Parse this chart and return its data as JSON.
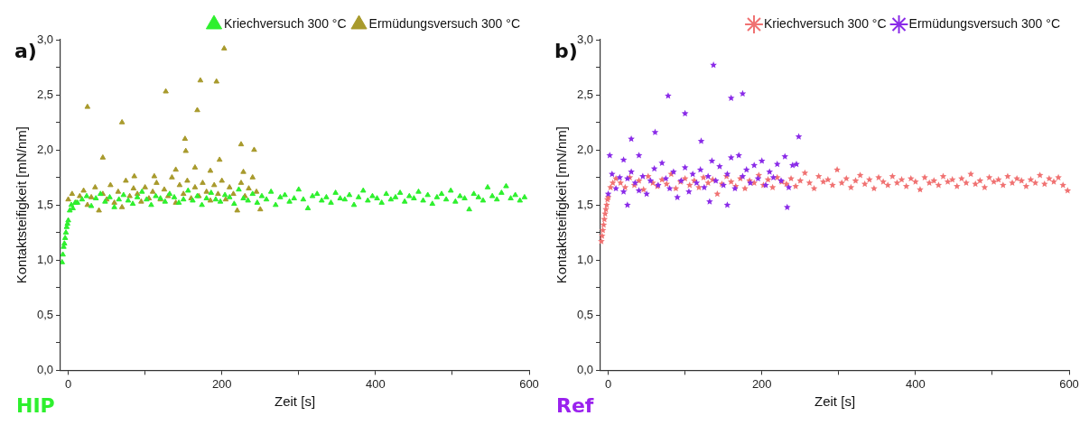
{
  "chart_data": [
    {
      "type": "scatter",
      "xlabel": "Zeit [s]",
      "ylabel": "Kontaktsteifigkeit [mN/nm]",
      "annotations": [
        "a)",
        "HIP"
      ],
      "marker": "triangle",
      "legend": "top right",
      "grid": false,
      "xlim": [
        -10,
        600
      ],
      "xticks": [
        0,
        {
          "value": 100,
          "label": null
        },
        200,
        {
          "value": 300,
          "label": null
        },
        400,
        {
          "value": 500,
          "label": null
        },
        600
      ],
      "ylim": [
        0,
        3
      ],
      "yticks": [
        {
          "value": 0,
          "label": "0,0"
        },
        {
          "value": 0.25,
          "label": null
        },
        {
          "value": 0.5,
          "label": "0,5"
        },
        {
          "value": 0.75,
          "label": null
        },
        {
          "value": 1,
          "label": "1,0"
        },
        {
          "value": 1.25,
          "label": null
        },
        {
          "value": 1.5,
          "label": "1,5"
        },
        {
          "value": 1.75,
          "label": null
        },
        {
          "value": 2,
          "label": "2,0"
        },
        {
          "value": 2.25,
          "label": null
        },
        {
          "value": 2.5,
          "label": "2,5"
        },
        {
          "value": 2.75,
          "label": null
        },
        {
          "value": 3,
          "label": "3,0"
        }
      ],
      "series": [
        {
          "name": "Kriechversuch 300 °C",
          "color": "#2ef02e",
          "x": [
            -8,
            -7,
            -6,
            -5,
            -4,
            -3,
            -2,
            -1,
            0,
            2,
            4,
            6,
            9,
            12,
            18,
            24,
            30,
            36,
            42,
            48,
            54,
            60,
            66,
            72,
            78,
            84,
            90,
            96,
            102,
            108,
            114,
            120,
            126,
            132,
            138,
            144,
            150,
            156,
            162,
            168,
            174,
            180,
            186,
            192,
            198,
            204,
            210,
            216,
            222,
            228,
            234,
            240,
            246,
            252,
            258,
            264,
            270,
            276,
            282,
            288,
            294,
            300,
            306,
            312,
            318,
            324,
            330,
            336,
            342,
            348,
            354,
            360,
            366,
            372,
            378,
            384,
            390,
            396,
            402,
            408,
            414,
            420,
            426,
            432,
            438,
            444,
            450,
            456,
            462,
            468,
            474,
            480,
            486,
            492,
            498,
            504,
            510,
            516,
            522,
            528,
            534,
            540,
            546,
            552,
            558,
            564,
            570,
            576,
            582,
            588,
            594
          ],
          "values": [
            0.98,
            1.05,
            1.12,
            1.15,
            1.2,
            1.25,
            1.3,
            1.33,
            1.36,
            1.45,
            1.5,
            1.47,
            1.52,
            1.52,
            1.55,
            1.58,
            1.49,
            1.56,
            1.6,
            1.53,
            1.57,
            1.48,
            1.55,
            1.59,
            1.54,
            1.51,
            1.57,
            1.62,
            1.55,
            1.5,
            1.58,
            1.56,
            1.53,
            1.6,
            1.57,
            1.52,
            1.55,
            1.63,
            1.54,
            1.58,
            1.5,
            1.56,
            1.61,
            1.55,
            1.53,
            1.59,
            1.57,
            1.51,
            1.64,
            1.56,
            1.54,
            1.6,
            1.52,
            1.58,
            1.55,
            1.62,
            1.5,
            1.57,
            1.59,
            1.53,
            1.56,
            1.64,
            1.55,
            1.47,
            1.58,
            1.6,
            1.54,
            1.57,
            1.52,
            1.61,
            1.56,
            1.55,
            1.59,
            1.5,
            1.57,
            1.63,
            1.54,
            1.58,
            1.56,
            1.52,
            1.6,
            1.55,
            1.57,
            1.61,
            1.53,
            1.58,
            1.56,
            1.62,
            1.54,
            1.59,
            1.51,
            1.57,
            1.6,
            1.55,
            1.63,
            1.53,
            1.58,
            1.56,
            1.46,
            1.6,
            1.57,
            1.54,
            1.66,
            1.58,
            1.55,
            1.61,
            1.67,
            1.56,
            1.59,
            1.54,
            1.57
          ]
        },
        {
          "name": "Ermüdungsversuch 300 °C",
          "color": "#a89a2c",
          "x": [
            0,
            5,
            10,
            15,
            20,
            25,
            30,
            35,
            40,
            45,
            50,
            55,
            60,
            65,
            70,
            75,
            80,
            85,
            90,
            95,
            100,
            105,
            110,
            115,
            120,
            125,
            130,
            135,
            140,
            145,
            150,
            155,
            160,
            165,
            170,
            175,
            180,
            185,
            190,
            195,
            200,
            205,
            210,
            215,
            220,
            225,
            230,
            235,
            240,
            245,
            250,
            25,
            45,
            70,
            127,
            152,
            153,
            165,
            168,
            172,
            193,
            197,
            203,
            225,
            242,
            140,
            185,
            228,
            86,
            112
          ],
          "values": [
            1.55,
            1.6,
            1.52,
            1.58,
            1.63,
            1.5,
            1.57,
            1.66,
            1.45,
            1.6,
            1.55,
            1.68,
            1.52,
            1.62,
            1.48,
            1.72,
            1.58,
            1.65,
            1.6,
            1.53,
            1.66,
            1.56,
            1.62,
            1.7,
            1.55,
            1.64,
            1.58,
            1.75,
            1.52,
            1.68,
            1.6,
            1.72,
            1.56,
            1.66,
            1.58,
            1.7,
            1.62,
            1.54,
            1.68,
            1.6,
            1.72,
            1.55,
            1.66,
            1.6,
            1.45,
            1.7,
            1.58,
            1.65,
            1.75,
            1.62,
            1.46,
            2.39,
            1.93,
            2.25,
            2.53,
            2.1,
            1.99,
            1.84,
            2.36,
            2.63,
            2.62,
            1.91,
            2.92,
            2.05,
            2.0,
            1.82,
            1.81,
            1.8,
            1.76,
            1.76
          ]
        }
      ]
    },
    {
      "type": "scatter",
      "xlabel": "Zeit [s]",
      "ylabel": "Kontaktsteifigkeit [mN/nm]",
      "annotations": [
        "b)",
        "Ref"
      ],
      "marker": "star",
      "legend": "top right",
      "grid": false,
      "xlim": [
        -10,
        600
      ],
      "xticks": [
        0,
        {
          "value": 100,
          "label": null
        },
        200,
        {
          "value": 300,
          "label": null
        },
        400,
        {
          "value": 500,
          "label": null
        },
        600
      ],
      "ylim": [
        0,
        3
      ],
      "yticks": [
        {
          "value": 0,
          "label": "0,0"
        },
        {
          "value": 0.25,
          "label": null
        },
        {
          "value": 0.5,
          "label": "0,5"
        },
        {
          "value": 0.75,
          "label": null
        },
        {
          "value": 1,
          "label": "1,0"
        },
        {
          "value": 1.25,
          "label": null
        },
        {
          "value": 1.5,
          "label": "1,5"
        },
        {
          "value": 1.75,
          "label": null
        },
        {
          "value": 2,
          "label": "2,0"
        },
        {
          "value": 2.25,
          "label": null
        },
        {
          "value": 2.5,
          "label": "2,5"
        },
        {
          "value": 2.75,
          "label": null
        },
        {
          "value": 3,
          "label": "3,0"
        }
      ],
      "series": [
        {
          "name": "Kriechversuch 300 °C",
          "color": "#f07272",
          "x": [
            -9,
            -8,
            -7,
            -6,
            -5,
            -4,
            -3,
            -2,
            -1,
            0,
            3,
            6,
            10,
            16,
            22,
            28,
            34,
            40,
            46,
            52,
            58,
            64,
            70,
            76,
            82,
            88,
            94,
            100,
            106,
            112,
            118,
            124,
            130,
            136,
            142,
            148,
            154,
            160,
            166,
            172,
            178,
            184,
            190,
            196,
            202,
            208,
            214,
            220,
            226,
            232,
            238,
            244,
            250,
            256,
            262,
            268,
            274,
            280,
            286,
            292,
            298,
            304,
            310,
            316,
            322,
            328,
            334,
            340,
            346,
            352,
            358,
            364,
            370,
            376,
            382,
            388,
            394,
            400,
            406,
            412,
            418,
            424,
            430,
            436,
            442,
            448,
            454,
            460,
            466,
            472,
            478,
            484,
            490,
            496,
            502,
            508,
            514,
            520,
            526,
            532,
            538,
            544,
            550,
            556,
            562,
            568,
            574,
            580,
            586,
            592,
            598
          ],
          "values": [
            1.17,
            1.22,
            1.27,
            1.32,
            1.37,
            1.42,
            1.46,
            1.5,
            1.55,
            1.57,
            1.66,
            1.7,
            1.74,
            1.7,
            1.66,
            1.75,
            1.68,
            1.72,
            1.64,
            1.76,
            1.7,
            1.67,
            1.73,
            1.69,
            1.78,
            1.65,
            1.71,
            1.74,
            1.68,
            1.72,
            1.66,
            1.75,
            1.7,
            1.73,
            1.6,
            1.69,
            1.76,
            1.71,
            1.67,
            1.74,
            1.65,
            1.72,
            1.7,
            1.77,
            1.68,
            1.73,
            1.66,
            1.75,
            1.71,
            1.69,
            1.74,
            1.67,
            1.72,
            1.79,
            1.7,
            1.65,
            1.76,
            1.71,
            1.73,
            1.68,
            1.82,
            1.7,
            1.74,
            1.66,
            1.72,
            1.77,
            1.69,
            1.73,
            1.65,
            1.75,
            1.71,
            1.68,
            1.76,
            1.7,
            1.73,
            1.67,
            1.74,
            1.71,
            1.64,
            1.75,
            1.7,
            1.72,
            1.68,
            1.76,
            1.71,
            1.73,
            1.67,
            1.74,
            1.7,
            1.78,
            1.69,
            1.72,
            1.66,
            1.75,
            1.71,
            1.73,
            1.68,
            1.76,
            1.7,
            1.74,
            1.72,
            1.67,
            1.73,
            1.7,
            1.77,
            1.69,
            1.74,
            1.71,
            1.75,
            1.68,
            1.63
          ]
        },
        {
          "name": "Ermüdungsversuch 300 °C",
          "color": "#8a2be8",
          "x": [
            0,
            5,
            10,
            15,
            20,
            25,
            30,
            35,
            40,
            45,
            50,
            55,
            60,
            65,
            70,
            75,
            80,
            85,
            90,
            95,
            100,
            105,
            110,
            115,
            120,
            125,
            130,
            135,
            140,
            145,
            150,
            155,
            160,
            165,
            170,
            175,
            180,
            185,
            190,
            195,
            200,
            205,
            210,
            215,
            220,
            225,
            230,
            235,
            240,
            245,
            2,
            30,
            61,
            78,
            100,
            121,
            137,
            160,
            175,
            248,
            25,
            132,
            155,
            233,
            20,
            40
          ],
          "values": [
            1.6,
            1.78,
            1.65,
            1.75,
            1.62,
            1.74,
            1.8,
            1.7,
            1.63,
            1.76,
            1.6,
            1.72,
            1.83,
            1.68,
            1.88,
            1.74,
            1.65,
            1.8,
            1.57,
            1.72,
            1.84,
            1.62,
            1.78,
            1.7,
            1.82,
            1.66,
            1.76,
            1.9,
            1.72,
            1.85,
            1.68,
            1.78,
            1.93,
            1.65,
            1.95,
            1.76,
            1.82,
            1.7,
            1.86,
            1.74,
            1.9,
            1.68,
            1.8,
            1.75,
            1.87,
            1.72,
            1.94,
            1.66,
            1.86,
            1.87,
            1.95,
            2.1,
            2.16,
            2.49,
            2.33,
            2.08,
            2.77,
            2.47,
            2.51,
            2.12,
            1.5,
            1.53,
            1.5,
            1.48,
            1.91,
            1.95
          ]
        }
      ]
    }
  ]
}
